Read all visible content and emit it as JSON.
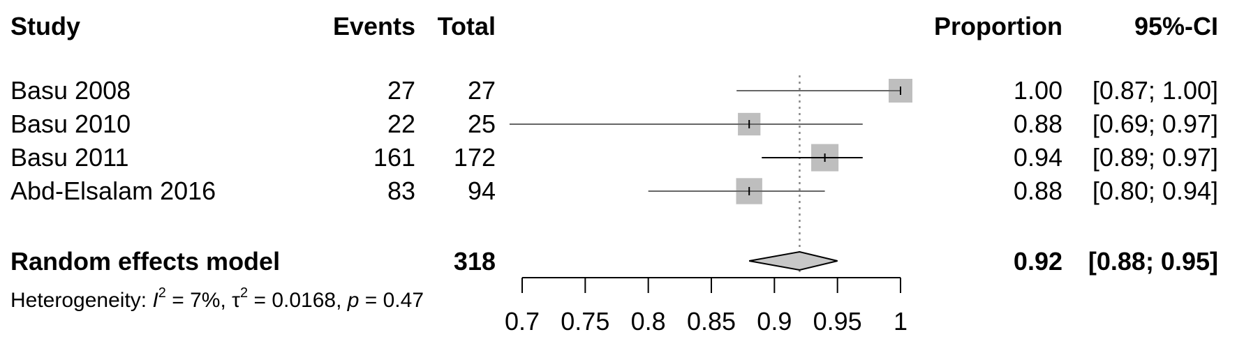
{
  "chart_data": {
    "type": "forest",
    "header": {
      "study": "Study",
      "events": "Events",
      "total": "Total",
      "proportion": "Proportion",
      "ci": "95%-CI"
    },
    "studies": [
      {
        "name": "Basu 2008",
        "events": "27",
        "total": "27",
        "prop": 1.0,
        "lower": 0.87,
        "upper": 1.0,
        "prop_label": "1.00",
        "ci_label": "[0.87; 1.00]",
        "weight": 1.0
      },
      {
        "name": "Basu 2010",
        "events": "22",
        "total": "25",
        "prop": 0.88,
        "lower": 0.69,
        "upper": 0.97,
        "prop_label": "0.88",
        "ci_label": "[0.69; 0.97]",
        "weight": 0.95
      },
      {
        "name": "Basu 2011",
        "events": "161",
        "total": "172",
        "prop": 0.94,
        "lower": 0.89,
        "upper": 0.97,
        "prop_label": "0.94",
        "ci_label": "[0.89; 0.97]",
        "weight": 1.15
      },
      {
        "name": "Abd-Elsalam 2016",
        "events": "83",
        "total": "94",
        "prop": 0.88,
        "lower": 0.8,
        "upper": 0.94,
        "prop_label": "0.88",
        "ci_label": "[0.80; 0.94]",
        "weight": 1.1
      }
    ],
    "summary": {
      "name": "Random effects model",
      "total": "318",
      "estimate": 0.92,
      "lower": 0.88,
      "upper": 0.95,
      "prop_label": "0.92",
      "ci_label": "[0.88; 0.95]"
    },
    "heterogeneity": {
      "prefix": "Heterogeneity: ",
      "i2_symbol": "I",
      "i2_value": " = 7%, ",
      "tau2_symbol": "τ",
      "tau2_value": " = 0.0168, ",
      "p_symbol": "p",
      "p_value": " = 0.47"
    },
    "x_axis": {
      "range": [
        0.7,
        1.0
      ],
      "ticks": [
        0.7,
        0.75,
        0.8,
        0.85,
        0.9,
        0.95,
        1.0
      ],
      "tick_labels": [
        "0.7",
        "0.75",
        "0.8",
        "0.85",
        "0.9",
        "0.95",
        "1"
      ]
    },
    "reference_line": 0.92,
    "colors": {
      "box": "#bebebe",
      "diamond": "#c8c8c8",
      "ci_line_dark": "#000000",
      "ci_line_gray": "#666666",
      "ref_line": "#888888"
    }
  }
}
